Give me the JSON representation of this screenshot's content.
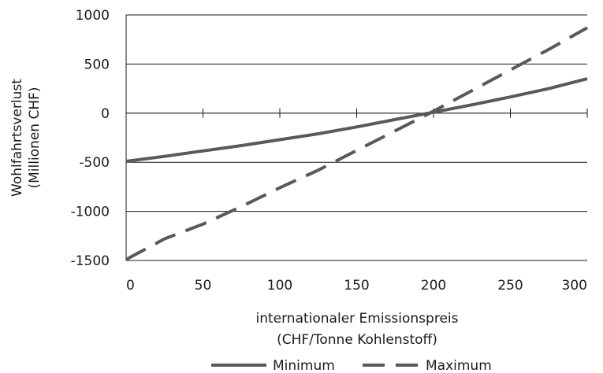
{
  "chart_data": {
    "type": "line",
    "xlabel": [
      "internationaler Emissionspreis",
      "(CHF/Tonne Kohlenstoff)"
    ],
    "ylabel": [
      "Wohlfahrtsverlust",
      "(Millionen CHF)"
    ],
    "xlim": [
      0,
      300
    ],
    "ylim": [
      -1500,
      1000
    ],
    "x_ticks": [
      0,
      50,
      100,
      150,
      200,
      250,
      300
    ],
    "y_ticks": [
      1000,
      500,
      0,
      -500,
      -1000,
      -1500
    ],
    "grid": "horizontal",
    "legend_position": "bottom",
    "x": [
      0,
      25,
      50,
      75,
      100,
      125,
      150,
      175,
      200,
      225,
      250,
      275,
      300
    ],
    "series": [
      {
        "name": "Minimum",
        "style": "solid",
        "color": "#595959",
        "values": [
          -490,
          -440,
          -385,
          -330,
          -270,
          -210,
          -140,
          -65,
          10,
          85,
          165,
          250,
          350
        ]
      },
      {
        "name": "Maximum",
        "style": "dashed",
        "color": "#595959",
        "values": [
          -1490,
          -1280,
          -1130,
          -950,
          -760,
          -580,
          -380,
          -180,
          20,
          230,
          440,
          650,
          870
        ]
      }
    ]
  }
}
